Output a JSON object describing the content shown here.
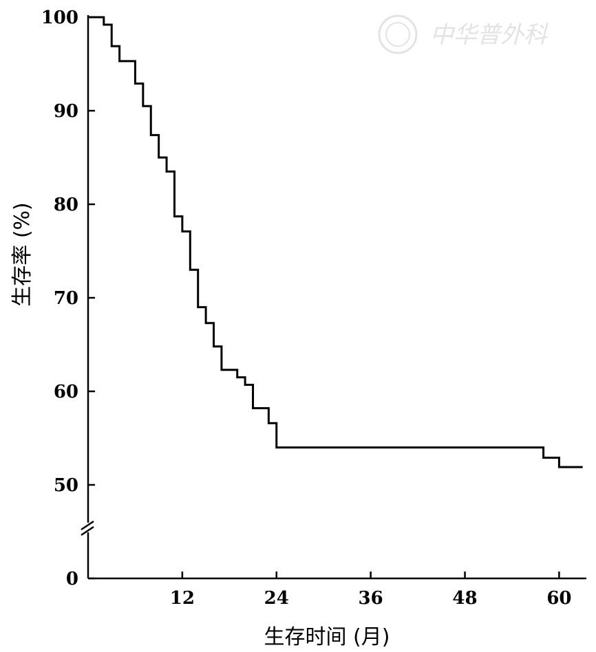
{
  "watermark": {
    "text": "中华普外科"
  },
  "chart_data": {
    "type": "line",
    "step": true,
    "xlabel": "生存时间 (月)",
    "ylabel": "生存率 (%)",
    "xlim": [
      0,
      63
    ],
    "ylim": [
      0,
      100
    ],
    "y_axis_break": {
      "from": 0,
      "to": 50
    },
    "xticks": [
      12,
      24,
      36,
      48,
      60
    ],
    "yticks": [
      0,
      50,
      60,
      70,
      80,
      90,
      100
    ],
    "grid": false,
    "series": [
      {
        "x": [
          0,
          2,
          3,
          4,
          6,
          7,
          8,
          9,
          10,
          11,
          12,
          13,
          14,
          15,
          16,
          17,
          19,
          20,
          21,
          23,
          24,
          58,
          60,
          63
        ],
        "y": [
          100,
          99.2,
          96.9,
          95.3,
          92.9,
          90.5,
          87.4,
          85.0,
          83.5,
          78.7,
          77.1,
          73.0,
          69.0,
          67.3,
          64.8,
          62.3,
          61.5,
          60.7,
          58.2,
          56.6,
          54.0,
          52.9,
          51.9,
          51.9
        ]
      }
    ]
  }
}
